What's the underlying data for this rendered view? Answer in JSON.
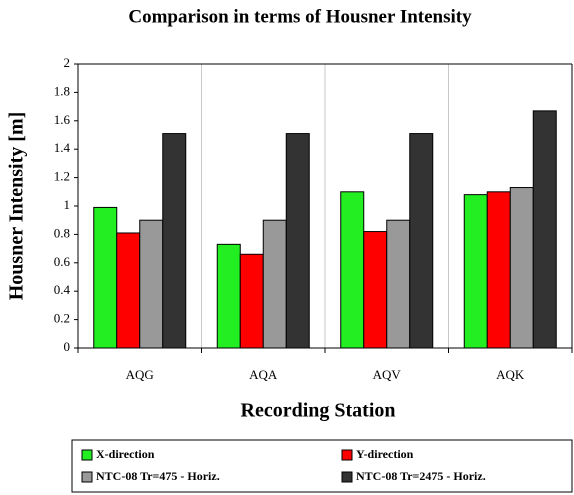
{
  "chart_data": {
    "type": "bar",
    "title": "Comparison in terms of Housner Intensity",
    "x_label": "Recording Station",
    "y_label": "Housner Intensity [m]",
    "categories": [
      "AQG",
      "AQA",
      "AQV",
      "AQK"
    ],
    "series": [
      {
        "name": "X-direction",
        "color": "#22ee22",
        "values": [
          0.99,
          0.73,
          1.1,
          1.08
        ]
      },
      {
        "name": "Y-direction",
        "color": "#ff0000",
        "values": [
          0.81,
          0.66,
          0.82,
          1.1
        ]
      },
      {
        "name": "NTC-08 Tr=475 - Horiz.",
        "color": "#999999",
        "values": [
          0.9,
          0.9,
          0.9,
          1.13
        ]
      },
      {
        "name": "NTC-08 Tr=2475 - Horiz.",
        "color": "#333333",
        "values": [
          1.51,
          1.51,
          1.51,
          1.67
        ]
      }
    ],
    "ylim": [
      0,
      2
    ],
    "yticks": [
      0,
      0.2,
      0.4,
      0.6,
      0.8,
      1,
      1.2,
      1.4,
      1.6,
      1.8,
      2
    ],
    "grid": true
  }
}
